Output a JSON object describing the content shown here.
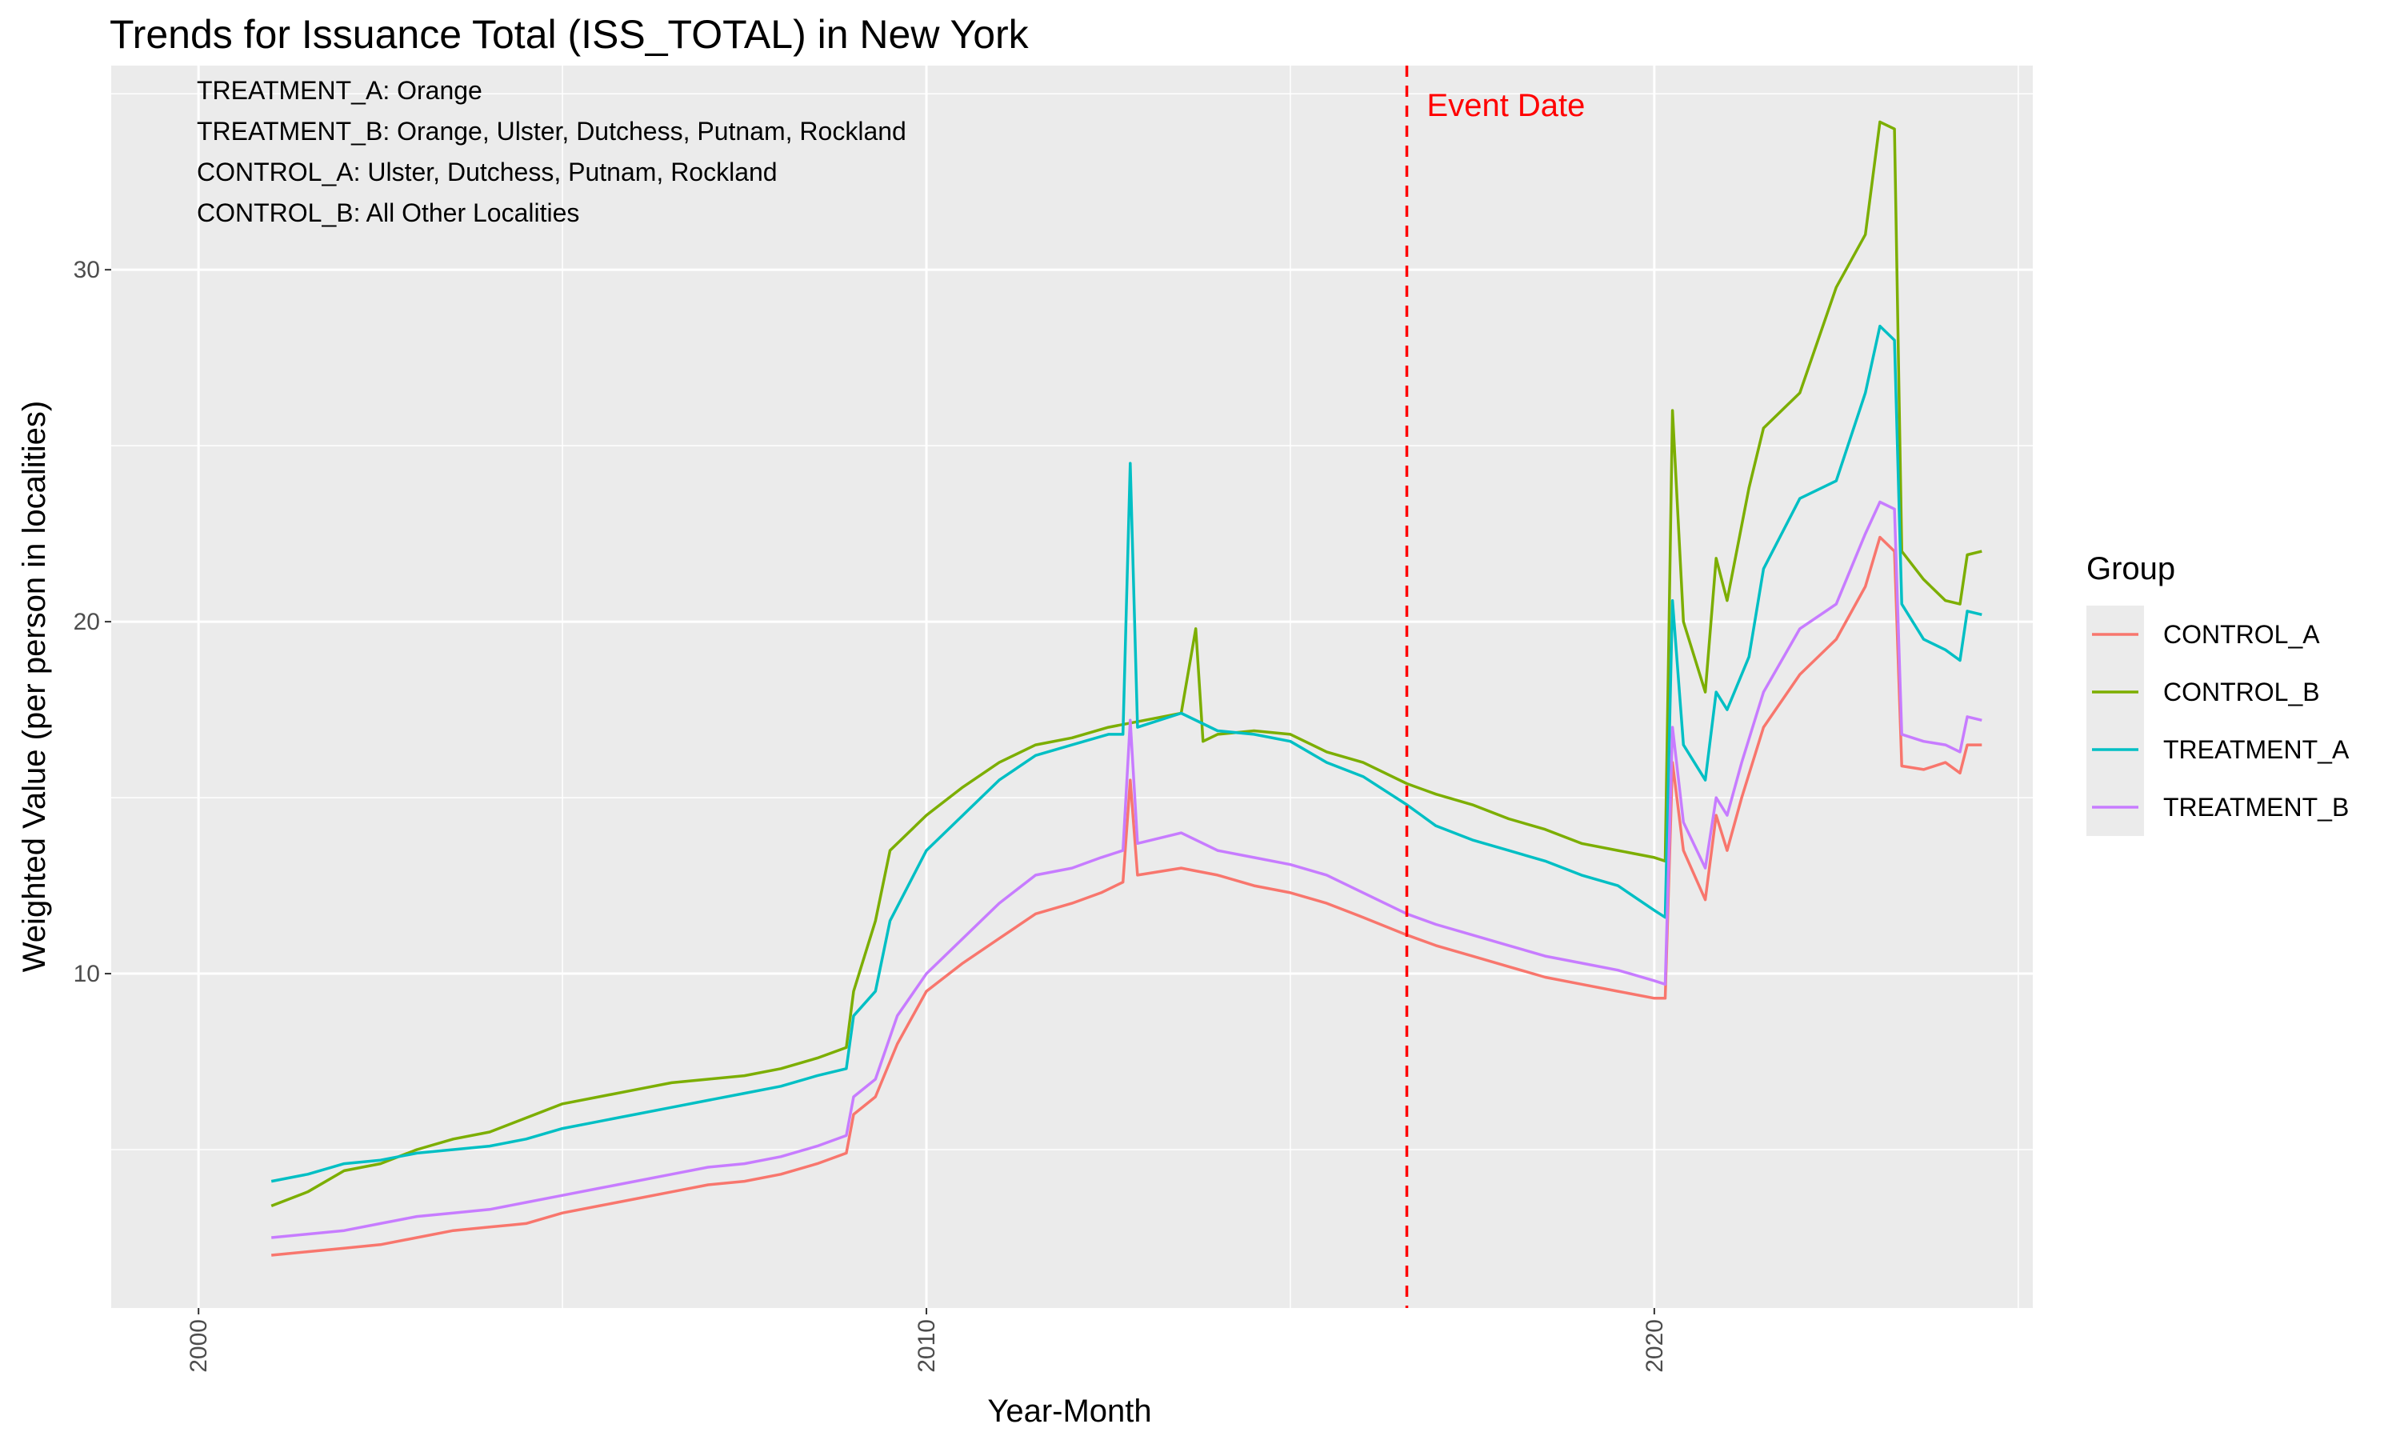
{
  "chart_data": {
    "type": "line",
    "title": "Trends for Issuance Total (ISS_TOTAL) in New York",
    "xlabel": "Year-Month",
    "ylabel": "Weighted Value (per person in localities)",
    "xlim": [
      1998.8,
      2025.2
    ],
    "ylim": [
      0.5,
      35.8
    ],
    "x_ticks": [
      2000,
      2010,
      2020
    ],
    "y_ticks": [
      10,
      20,
      30
    ],
    "grid": true,
    "legend": {
      "title": "Group",
      "position": "right"
    },
    "annotations": [
      "TREATMENT_A: Orange",
      "TREATMENT_B: Orange, Ulster, Dutchess, Putnam, Rockland",
      "CONTROL_A: Ulster, Dutchess, Putnam, Rockland",
      "CONTROL_B: All Other Localities"
    ],
    "event": {
      "label": "Event Date",
      "x": 2016.6,
      "color": "#ff0000"
    },
    "series": [
      {
        "name": "CONTROL_A",
        "color": "#F8766D",
        "points": [
          [
            2001.0,
            2.0
          ],
          [
            2001.5,
            2.1
          ],
          [
            2002.0,
            2.2
          ],
          [
            2002.5,
            2.3
          ],
          [
            2003.0,
            2.5
          ],
          [
            2003.5,
            2.7
          ],
          [
            2004.0,
            2.8
          ],
          [
            2004.5,
            2.9
          ],
          [
            2005.0,
            3.2
          ],
          [
            2005.5,
            3.4
          ],
          [
            2006.0,
            3.6
          ],
          [
            2006.5,
            3.8
          ],
          [
            2007.0,
            4.0
          ],
          [
            2007.5,
            4.1
          ],
          [
            2008.0,
            4.3
          ],
          [
            2008.5,
            4.6
          ],
          [
            2008.9,
            4.9
          ],
          [
            2009.0,
            6.0
          ],
          [
            2009.3,
            6.5
          ],
          [
            2009.6,
            8.0
          ],
          [
            2010.0,
            9.5
          ],
          [
            2010.5,
            10.3
          ],
          [
            2011.0,
            11.0
          ],
          [
            2011.5,
            11.7
          ],
          [
            2012.0,
            12.0
          ],
          [
            2012.4,
            12.3
          ],
          [
            2012.7,
            12.6
          ],
          [
            2012.8,
            15.5
          ],
          [
            2012.9,
            12.8
          ],
          [
            2013.5,
            13.0
          ],
          [
            2014.0,
            12.8
          ],
          [
            2014.5,
            12.5
          ],
          [
            2015.0,
            12.3
          ],
          [
            2015.5,
            12.0
          ],
          [
            2016.0,
            11.6
          ],
          [
            2016.6,
            11.1
          ],
          [
            2017.0,
            10.8
          ],
          [
            2017.5,
            10.5
          ],
          [
            2018.0,
            10.2
          ],
          [
            2018.5,
            9.9
          ],
          [
            2019.0,
            9.7
          ],
          [
            2019.5,
            9.5
          ],
          [
            2020.0,
            9.3
          ],
          [
            2020.15,
            9.3
          ],
          [
            2020.25,
            16.0
          ],
          [
            2020.4,
            13.5
          ],
          [
            2020.7,
            12.1
          ],
          [
            2020.85,
            14.5
          ],
          [
            2021.0,
            13.5
          ],
          [
            2021.2,
            15.0
          ],
          [
            2021.5,
            17.0
          ],
          [
            2022.0,
            18.5
          ],
          [
            2022.5,
            19.5
          ],
          [
            2022.9,
            21.0
          ],
          [
            2023.1,
            22.4
          ],
          [
            2023.3,
            22.0
          ],
          [
            2023.4,
            15.9
          ],
          [
            2023.7,
            15.8
          ],
          [
            2024.0,
            16.0
          ],
          [
            2024.2,
            15.7
          ],
          [
            2024.3,
            16.5
          ],
          [
            2024.5,
            16.5
          ]
        ]
      },
      {
        "name": "CONTROL_B",
        "color": "#7CAE00",
        "points": [
          [
            2001.0,
            3.4
          ],
          [
            2001.5,
            3.8
          ],
          [
            2002.0,
            4.4
          ],
          [
            2002.5,
            4.6
          ],
          [
            2003.0,
            5.0
          ],
          [
            2003.5,
            5.3
          ],
          [
            2004.0,
            5.5
          ],
          [
            2004.5,
            5.9
          ],
          [
            2005.0,
            6.3
          ],
          [
            2005.5,
            6.5
          ],
          [
            2006.0,
            6.7
          ],
          [
            2006.5,
            6.9
          ],
          [
            2007.0,
            7.0
          ],
          [
            2007.5,
            7.1
          ],
          [
            2008.0,
            7.3
          ],
          [
            2008.5,
            7.6
          ],
          [
            2008.9,
            7.9
          ],
          [
            2009.0,
            9.5
          ],
          [
            2009.3,
            11.5
          ],
          [
            2009.5,
            13.5
          ],
          [
            2010.0,
            14.5
          ],
          [
            2010.5,
            15.3
          ],
          [
            2011.0,
            16.0
          ],
          [
            2011.5,
            16.5
          ],
          [
            2012.0,
            16.7
          ],
          [
            2012.5,
            17.0
          ],
          [
            2013.0,
            17.2
          ],
          [
            2013.5,
            17.4
          ],
          [
            2013.7,
            19.8
          ],
          [
            2013.8,
            16.6
          ],
          [
            2014.0,
            16.8
          ],
          [
            2014.5,
            16.9
          ],
          [
            2015.0,
            16.8
          ],
          [
            2015.5,
            16.3
          ],
          [
            2016.0,
            16.0
          ],
          [
            2016.6,
            15.4
          ],
          [
            2017.0,
            15.1
          ],
          [
            2017.5,
            14.8
          ],
          [
            2018.0,
            14.4
          ],
          [
            2018.5,
            14.1
          ],
          [
            2019.0,
            13.7
          ],
          [
            2019.5,
            13.5
          ],
          [
            2020.0,
            13.3
          ],
          [
            2020.15,
            13.2
          ],
          [
            2020.25,
            26.0
          ],
          [
            2020.4,
            20.0
          ],
          [
            2020.7,
            18.0
          ],
          [
            2020.85,
            21.8
          ],
          [
            2021.0,
            20.6
          ],
          [
            2021.3,
            23.8
          ],
          [
            2021.5,
            25.5
          ],
          [
            2022.0,
            26.5
          ],
          [
            2022.5,
            29.5
          ],
          [
            2022.9,
            31.0
          ],
          [
            2023.1,
            34.2
          ],
          [
            2023.3,
            34.0
          ],
          [
            2023.4,
            22.0
          ],
          [
            2023.7,
            21.2
          ],
          [
            2024.0,
            20.6
          ],
          [
            2024.2,
            20.5
          ],
          [
            2024.3,
            21.9
          ],
          [
            2024.5,
            22.0
          ]
        ]
      },
      {
        "name": "TREATMENT_A",
        "color": "#00BFC4",
        "points": [
          [
            2001.0,
            4.1
          ],
          [
            2001.5,
            4.3
          ],
          [
            2002.0,
            4.6
          ],
          [
            2002.5,
            4.7
          ],
          [
            2003.0,
            4.9
          ],
          [
            2003.5,
            5.0
          ],
          [
            2004.0,
            5.1
          ],
          [
            2004.5,
            5.3
          ],
          [
            2005.0,
            5.6
          ],
          [
            2005.5,
            5.8
          ],
          [
            2006.0,
            6.0
          ],
          [
            2006.5,
            6.2
          ],
          [
            2007.0,
            6.4
          ],
          [
            2007.5,
            6.6
          ],
          [
            2008.0,
            6.8
          ],
          [
            2008.5,
            7.1
          ],
          [
            2008.9,
            7.3
          ],
          [
            2009.0,
            8.8
          ],
          [
            2009.3,
            9.5
          ],
          [
            2009.5,
            11.5
          ],
          [
            2010.0,
            13.5
          ],
          [
            2010.5,
            14.5
          ],
          [
            2011.0,
            15.5
          ],
          [
            2011.5,
            16.2
          ],
          [
            2012.0,
            16.5
          ],
          [
            2012.5,
            16.8
          ],
          [
            2012.7,
            16.8
          ],
          [
            2012.8,
            24.5
          ],
          [
            2012.9,
            17.0
          ],
          [
            2013.5,
            17.4
          ],
          [
            2014.0,
            16.9
          ],
          [
            2014.5,
            16.8
          ],
          [
            2015.0,
            16.6
          ],
          [
            2015.5,
            16.0
          ],
          [
            2016.0,
            15.6
          ],
          [
            2016.6,
            14.8
          ],
          [
            2017.0,
            14.2
          ],
          [
            2017.5,
            13.8
          ],
          [
            2018.0,
            13.5
          ],
          [
            2018.5,
            13.2
          ],
          [
            2019.0,
            12.8
          ],
          [
            2019.5,
            12.5
          ],
          [
            2020.0,
            11.8
          ],
          [
            2020.15,
            11.6
          ],
          [
            2020.25,
            20.6
          ],
          [
            2020.4,
            16.5
          ],
          [
            2020.7,
            15.5
          ],
          [
            2020.85,
            18.0
          ],
          [
            2021.0,
            17.5
          ],
          [
            2021.3,
            19.0
          ],
          [
            2021.5,
            21.5
          ],
          [
            2022.0,
            23.5
          ],
          [
            2022.5,
            24.0
          ],
          [
            2022.9,
            26.5
          ],
          [
            2023.1,
            28.4
          ],
          [
            2023.3,
            28.0
          ],
          [
            2023.4,
            20.5
          ],
          [
            2023.7,
            19.5
          ],
          [
            2024.0,
            19.2
          ],
          [
            2024.2,
            18.9
          ],
          [
            2024.3,
            20.3
          ],
          [
            2024.5,
            20.2
          ]
        ]
      },
      {
        "name": "TREATMENT_B",
        "color": "#C77CFF",
        "points": [
          [
            2001.0,
            2.5
          ],
          [
            2001.5,
            2.6
          ],
          [
            2002.0,
            2.7
          ],
          [
            2002.5,
            2.9
          ],
          [
            2003.0,
            3.1
          ],
          [
            2003.5,
            3.2
          ],
          [
            2004.0,
            3.3
          ],
          [
            2004.5,
            3.5
          ],
          [
            2005.0,
            3.7
          ],
          [
            2005.5,
            3.9
          ],
          [
            2006.0,
            4.1
          ],
          [
            2006.5,
            4.3
          ],
          [
            2007.0,
            4.5
          ],
          [
            2007.5,
            4.6
          ],
          [
            2008.0,
            4.8
          ],
          [
            2008.5,
            5.1
          ],
          [
            2008.9,
            5.4
          ],
          [
            2009.0,
            6.5
          ],
          [
            2009.3,
            7.0
          ],
          [
            2009.6,
            8.8
          ],
          [
            2010.0,
            10.0
          ],
          [
            2010.5,
            11.0
          ],
          [
            2011.0,
            12.0
          ],
          [
            2011.5,
            12.8
          ],
          [
            2012.0,
            13.0
          ],
          [
            2012.4,
            13.3
          ],
          [
            2012.7,
            13.5
          ],
          [
            2012.8,
            17.2
          ],
          [
            2012.9,
            13.7
          ],
          [
            2013.5,
            14.0
          ],
          [
            2014.0,
            13.5
          ],
          [
            2014.5,
            13.3
          ],
          [
            2015.0,
            13.1
          ],
          [
            2015.5,
            12.8
          ],
          [
            2016.0,
            12.3
          ],
          [
            2016.6,
            11.7
          ],
          [
            2017.0,
            11.4
          ],
          [
            2017.5,
            11.1
          ],
          [
            2018.0,
            10.8
          ],
          [
            2018.5,
            10.5
          ],
          [
            2019.0,
            10.3
          ],
          [
            2019.5,
            10.1
          ],
          [
            2020.0,
            9.8
          ],
          [
            2020.15,
            9.7
          ],
          [
            2020.25,
            17.0
          ],
          [
            2020.4,
            14.3
          ],
          [
            2020.7,
            13.0
          ],
          [
            2020.85,
            15.0
          ],
          [
            2021.0,
            14.5
          ],
          [
            2021.2,
            16.0
          ],
          [
            2021.5,
            18.0
          ],
          [
            2022.0,
            19.8
          ],
          [
            2022.5,
            20.5
          ],
          [
            2022.9,
            22.5
          ],
          [
            2023.1,
            23.4
          ],
          [
            2023.3,
            23.2
          ],
          [
            2023.4,
            16.8
          ],
          [
            2023.7,
            16.6
          ],
          [
            2024.0,
            16.5
          ],
          [
            2024.2,
            16.3
          ],
          [
            2024.3,
            17.3
          ],
          [
            2024.5,
            17.2
          ]
        ]
      }
    ]
  }
}
